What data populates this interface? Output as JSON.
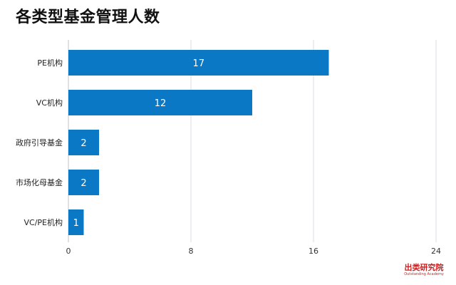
{
  "title": "各类型基金管理人数",
  "brand": {
    "name": "出类研究院",
    "subtitle": "Outstanding Academy"
  },
  "colors": {
    "bar": "#0a78c4",
    "bar_label": "#ffffff",
    "axis_text": "#222222",
    "tick_text": "#333333",
    "grid": "#d9dee3",
    "axis_line": "#bfc5ca",
    "brand": "#cc1f1f"
  },
  "chart_data": {
    "type": "bar",
    "orientation": "horizontal",
    "title": "各类型基金管理人数",
    "categories": [
      "PE机构",
      "VC机构",
      "政府引导基金",
      "市场化母基金",
      "VC/PE机构"
    ],
    "values": [
      17,
      12,
      2,
      2,
      1
    ],
    "data_labels": [
      "17",
      "12",
      "2",
      "2",
      "1"
    ],
    "xlim": [
      0,
      24
    ],
    "xticks": [
      0,
      8,
      16,
      24
    ],
    "xtick_labels": [
      "0",
      "8",
      "16",
      "24"
    ],
    "grid": true,
    "legend": "none"
  }
}
